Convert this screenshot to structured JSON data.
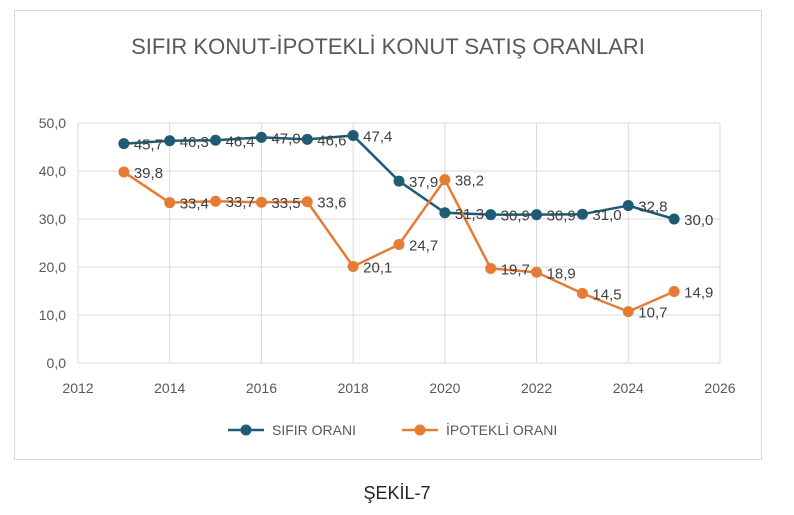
{
  "chart_data": {
    "type": "line",
    "title": "SIFIR KONUT-İPOTEKLİ KONUT SATIŞ ORANLARI",
    "xlabel": "",
    "ylabel": "",
    "xlim": [
      2012,
      2026
    ],
    "ylim": [
      0,
      50
    ],
    "x_ticks": [
      2012,
      2014,
      2016,
      2018,
      2020,
      2022,
      2024,
      2026
    ],
    "x_tick_labels": [
      "2012",
      "2014",
      "2016",
      "2018",
      "2020",
      "2022",
      "2024",
      "2026"
    ],
    "y_ticks": [
      0,
      10,
      20,
      30,
      40,
      50
    ],
    "y_tick_labels": [
      "0,0",
      "10,0",
      "20,0",
      "30,0",
      "40,0",
      "50,0"
    ],
    "grid": true,
    "legend_position": "bottom",
    "x": [
      2013,
      2014,
      2015,
      2016,
      2017,
      2018,
      2019,
      2020,
      2021,
      2022,
      2023,
      2024,
      2025
    ],
    "series": [
      {
        "name": "SIFIR ORANI",
        "color": "#1f5c73",
        "values": [
          45.7,
          46.3,
          46.4,
          47.0,
          46.6,
          47.4,
          37.9,
          31.3,
          30.9,
          30.9,
          31.0,
          32.8,
          30.0
        ],
        "labels": [
          "45,7",
          "46,3",
          "46,4",
          "47,0",
          "46,6",
          "47,4",
          "37,9",
          "31,3",
          "30,9",
          "30,9",
          "31,0",
          "32,8",
          "30,0"
        ]
      },
      {
        "name": "İPOTEKLİ ORANI",
        "color": "#e57c35",
        "values": [
          39.8,
          33.4,
          33.7,
          33.5,
          33.6,
          20.1,
          24.7,
          38.2,
          19.7,
          18.9,
          14.5,
          10.7,
          14.9
        ],
        "labels": [
          "39,8",
          "33,4",
          "33,7",
          "33,5",
          "33,6",
          "20,1",
          "24,7",
          "38,2",
          "19,7",
          "18,9",
          "14,5",
          "10,7",
          "14,9"
        ]
      }
    ]
  },
  "caption": "ŞEKİL-7"
}
